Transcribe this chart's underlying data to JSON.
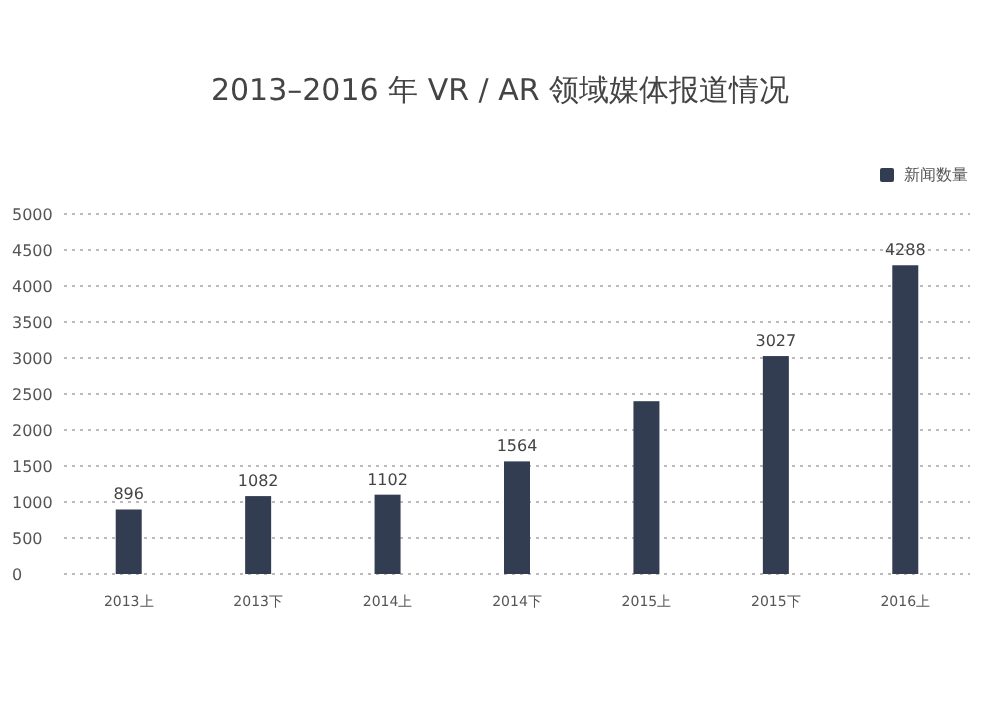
{
  "chart_data": {
    "type": "bar",
    "title": "2013–2016 年 VR / AR 领域媒体报道情况",
    "categories": [
      "2013上",
      "2013下",
      "2014上",
      "2014下",
      "2015上",
      "2015下",
      "2016上"
    ],
    "series": [
      {
        "name": "新闻数量",
        "color": "#333d52",
        "values": [
          896,
          1082,
          1102,
          1564,
          2400,
          3027,
          4288
        ],
        "value_labels": [
          "896",
          "1082",
          "1102",
          "1564",
          null,
          "3027",
          "4288"
        ]
      }
    ],
    "ylim": [
      0,
      5000
    ],
    "yticks": [
      0,
      500,
      1000,
      1500,
      2000,
      2500,
      3000,
      3500,
      4000,
      4500,
      5000
    ],
    "grid": "y",
    "legend": "top right"
  }
}
